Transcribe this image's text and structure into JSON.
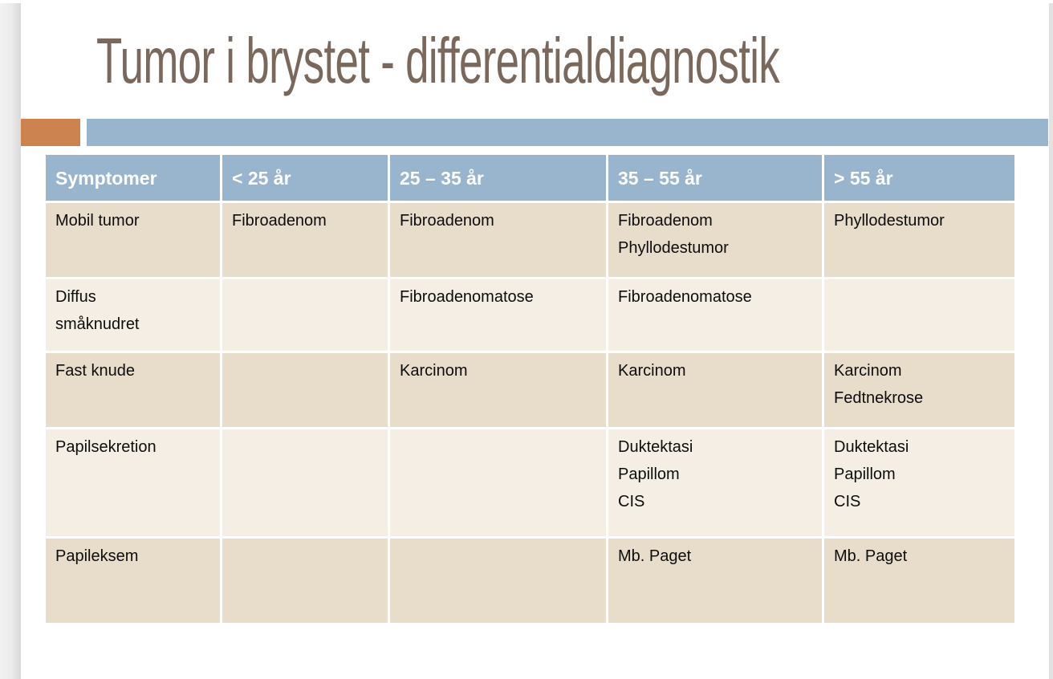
{
  "title": "Tumor i brystet - differentialdiagnostik",
  "colors": {
    "title_text": "#7a685c",
    "accent_orange": "#cc8350",
    "accent_blue": "#99b4cd",
    "header_bg": "#99b4cd",
    "header_text": "#ffffff",
    "row_dark": "#e7ddca",
    "row_light": "#f4eee5",
    "cell_text": "#0d0d0d"
  },
  "table": {
    "headers": [
      "Symptomer",
      "< 25 år",
      "25 – 35 år",
      "35 – 55 år",
      "> 55 år"
    ],
    "rows": [
      {
        "cells": [
          "Mobil tumor",
          "Fibroadenom",
          "Fibroadenom",
          "Fibroadenom\nPhyllodestumor",
          "Phyllodestumor"
        ]
      },
      {
        "cells": [
          "Diffus\nsmåknudret",
          "",
          "Fibroadenomatose",
          "Fibroadenomatose",
          ""
        ]
      },
      {
        "cells": [
          "Fast knude",
          "",
          "Karcinom",
          "Karcinom",
          "Karcinom\nFedtnekrose"
        ]
      },
      {
        "cells": [
          "Papilsekretion",
          "",
          "",
          "Duktektasi\nPapillom\nCIS",
          "Duktektasi\nPapillom\nCIS"
        ]
      },
      {
        "cells": [
          "Papileksem",
          "",
          "",
          "Mb. Paget",
          "Mb. Paget"
        ]
      }
    ]
  }
}
